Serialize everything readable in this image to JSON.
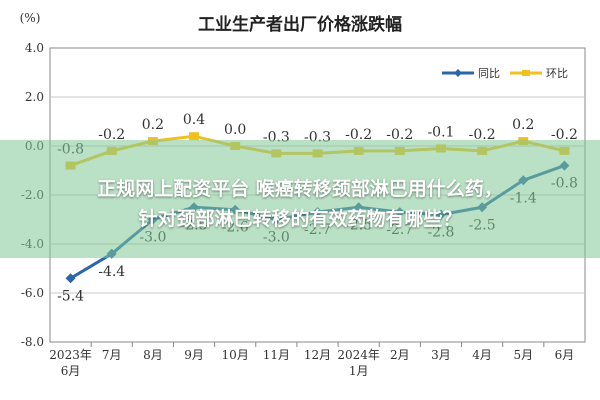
{
  "chart_data": {
    "type": "line",
    "title": "工业生产者出厂价格涨跌幅",
    "unit_label": "(%)",
    "categories": [
      "2023年\n6月",
      "7月",
      "8月",
      "9月",
      "10月",
      "11月",
      "12月",
      "2024年\n1月",
      "2月",
      "3月",
      "4月",
      "5月",
      "6月"
    ],
    "ylim": [
      -8.0,
      4.0
    ],
    "yticks": [
      "4.0",
      "2.0",
      "0.0",
      "-2.0",
      "-4.0",
      "-6.0",
      "-8.0"
    ],
    "legend_position": "top-right",
    "series": [
      {
        "name": "同比",
        "color": "#2b66a8",
        "values": [
          -5.4,
          -4.4,
          -3.0,
          -2.5,
          -2.6,
          -3.0,
          -2.7,
          -2.5,
          -2.7,
          -2.8,
          -2.5,
          -1.4,
          -0.8
        ],
        "labels": [
          "-5.4",
          "-4.4",
          "-3.0",
          "-2.5",
          "-2.6",
          "-3.0",
          "-2.7",
          "-2.5",
          "-2.7",
          "-2.8",
          "-2.5",
          "-1.4",
          "-0.8"
        ]
      },
      {
        "name": "环比",
        "color": "#f0c020",
        "values": [
          -0.8,
          -0.2,
          0.2,
          0.4,
          0.0,
          -0.3,
          -0.3,
          -0.2,
          -0.2,
          -0.1,
          -0.2,
          0.2,
          -0.2
        ],
        "labels": [
          "-0.8",
          "-0.2",
          "0.2",
          "0.4",
          "0.0",
          "-0.3",
          "-0.3",
          "-0.2",
          "-0.2",
          "-0.1",
          "-0.2",
          "0.2",
          "-0.2"
        ]
      }
    ]
  },
  "overlay": {
    "line1": "正规网上配资平台 喉癌转移颈部淋巴用什么药，",
    "line2": "针对颈部淋巴转移的有效药物有哪些？"
  }
}
